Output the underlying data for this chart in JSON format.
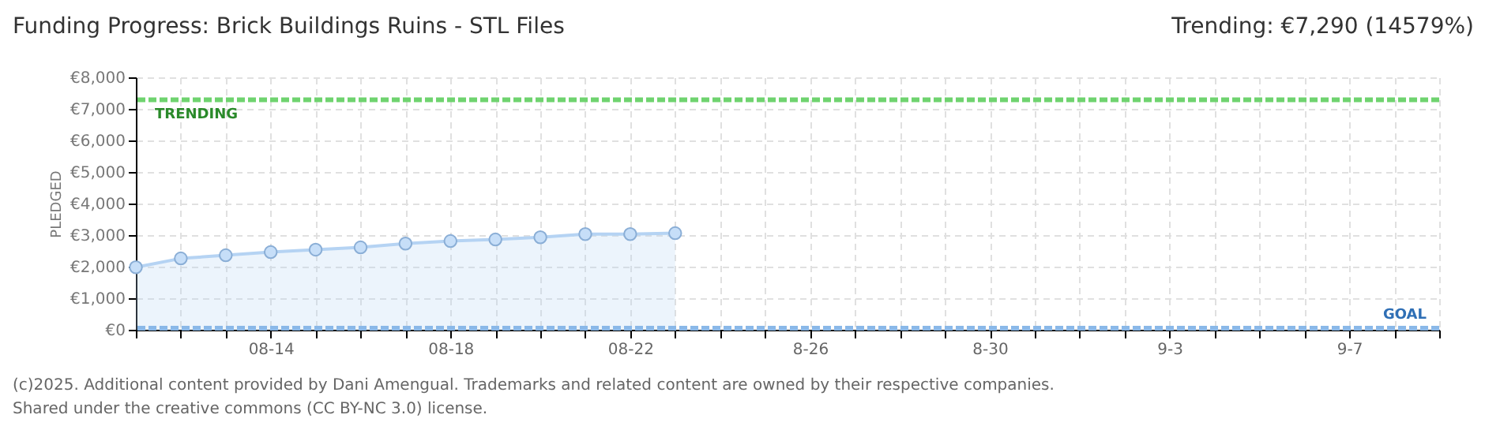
{
  "chart_data": {
    "type": "area",
    "title": "Funding Progress: Brick Buildings Ruins - STL Files",
    "subtitle": "Trending:  €7,290 (14579%)",
    "ylabel": "PLEDGED",
    "x": [
      "2025-08-11",
      "2025-08-12",
      "2025-08-13",
      "2025-08-14",
      "2025-08-15",
      "2025-08-16",
      "2025-08-17",
      "2025-08-18",
      "2025-08-19",
      "2025-08-20",
      "2025-08-21",
      "2025-08-22",
      "2025-08-23"
    ],
    "series": [
      {
        "color": "#b5d3f3",
        "values": [
          1980,
          2260,
          2360,
          2460,
          2540,
          2610,
          2730,
          2810,
          2860,
          2930,
          3030,
          3030,
          3060
        ]
      }
    ],
    "marker": "circle",
    "grid": true,
    "ylim": [
      0,
      8000
    ],
    "yticks": [
      {
        "value": 0,
        "label": "€0"
      },
      {
        "value": 1000,
        "label": "€1,000"
      },
      {
        "value": 2000,
        "label": "€2,000"
      },
      {
        "value": 3000,
        "label": "€3,000"
      },
      {
        "value": 4000,
        "label": "€4,000"
      },
      {
        "value": 5000,
        "label": "€5,000"
      },
      {
        "value": 6000,
        "label": "€6,000"
      },
      {
        "value": 7000,
        "label": "€7,000"
      },
      {
        "value": 8000,
        "label": "€8,000"
      }
    ],
    "xlim": [
      "2025-08-11",
      "2025-09-09"
    ],
    "xticks": [
      {
        "value": "2025-08-11",
        "label": null
      },
      {
        "value": "2025-08-12",
        "label": null
      },
      {
        "value": "2025-08-13",
        "label": null
      },
      {
        "value": "2025-08-14",
        "label": "08-14"
      },
      {
        "value": "2025-08-15",
        "label": null
      },
      {
        "value": "2025-08-16",
        "label": null
      },
      {
        "value": "2025-08-17",
        "label": null
      },
      {
        "value": "2025-08-18",
        "label": "08-18"
      },
      {
        "value": "2025-08-19",
        "label": null
      },
      {
        "value": "2025-08-20",
        "label": null
      },
      {
        "value": "2025-08-21",
        "label": null
      },
      {
        "value": "2025-08-22",
        "label": "08-22"
      },
      {
        "value": "2025-08-23",
        "label": null
      },
      {
        "value": "2025-08-24",
        "label": null
      },
      {
        "value": "2025-08-25",
        "label": null
      },
      {
        "value": "2025-08-26",
        "label": "8-26"
      },
      {
        "value": "2025-08-27",
        "label": null
      },
      {
        "value": "2025-08-28",
        "label": null
      },
      {
        "value": "2025-08-29",
        "label": null
      },
      {
        "value": "2025-08-30",
        "label": "8-30"
      },
      {
        "value": "2025-08-31",
        "label": null
      },
      {
        "value": "2025-09-01",
        "label": null
      },
      {
        "value": "2025-09-02",
        "label": null
      },
      {
        "value": "2025-09-03",
        "label": "9-3"
      },
      {
        "value": "2025-09-04",
        "label": null
      },
      {
        "value": "2025-09-05",
        "label": null
      },
      {
        "value": "2025-09-06",
        "label": null
      },
      {
        "value": "2025-09-07",
        "label": "9-7"
      },
      {
        "value": "2025-09-08",
        "label": null
      },
      {
        "value": "2025-09-09",
        "label": null
      }
    ],
    "ref_lines": [
      {
        "axis": "y",
        "value": 7290,
        "label": "TRENDING",
        "color": "#6fd36f",
        "line_style": "dashed"
      },
      {
        "axis": "y",
        "value": 50,
        "label": "GOAL",
        "color": "#8ab8e8",
        "line_style": "dashed"
      }
    ],
    "annotations": [
      "(c)2025. Additional content provided by Dani Amengual. Trademarks and related content are owned by their respective companies.",
      "Shared under the creative commons (CC BY-NC 3.0) license."
    ]
  }
}
